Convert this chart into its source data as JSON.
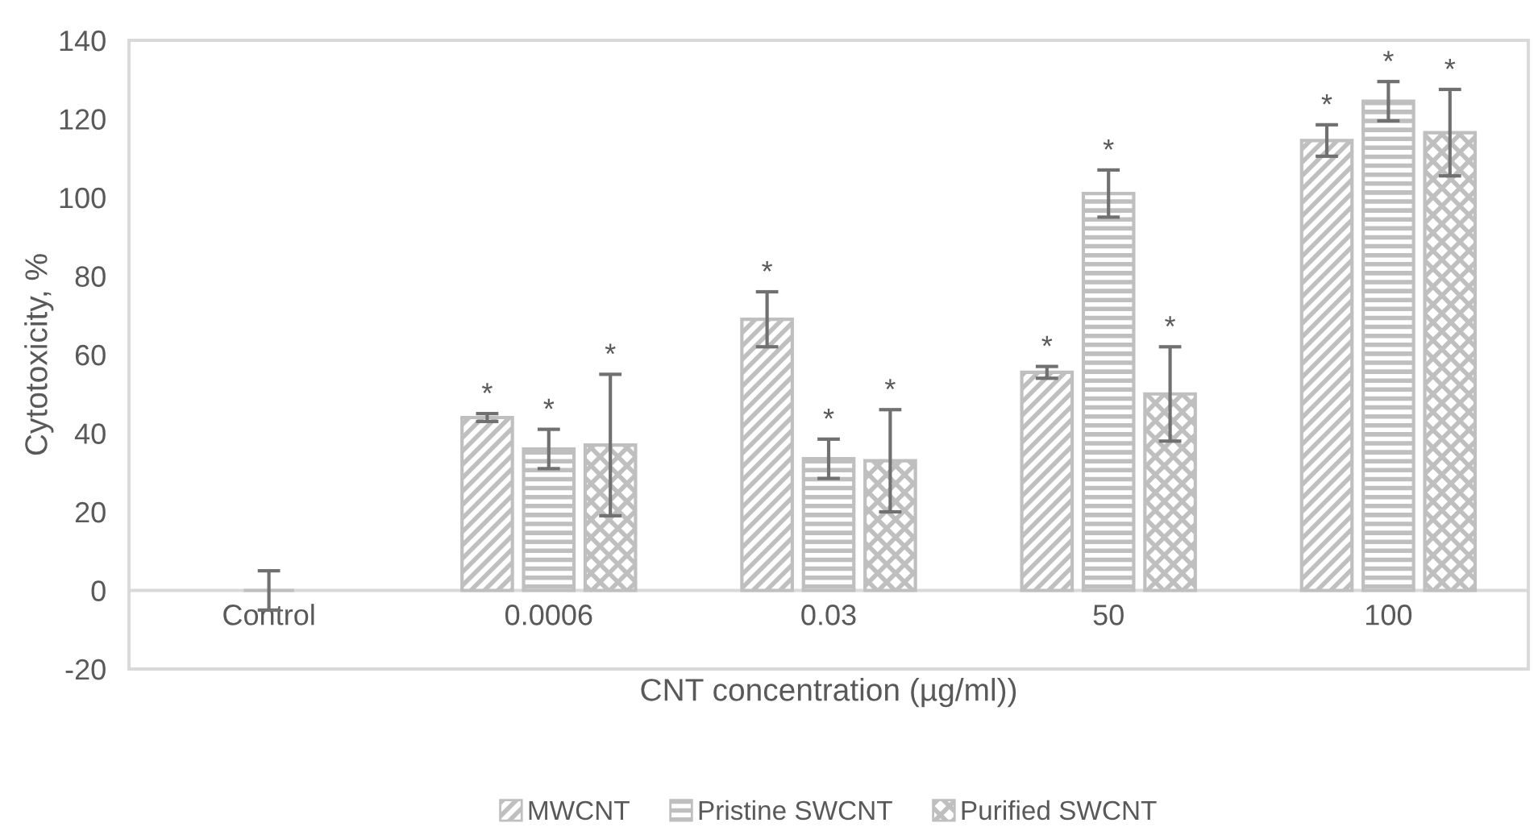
{
  "chart_data": {
    "type": "bar",
    "categories": [
      "Control",
      "0.0006",
      "0.03",
      "50",
      "100"
    ],
    "xlabel": "CNT concentration (µg/ml))",
    "ylabel": "Cytotoxicity, %",
    "ylim": [
      -20,
      140
    ],
    "yticks": [
      -20,
      0,
      20,
      40,
      60,
      80,
      100,
      120,
      140
    ],
    "series": [
      {
        "name": "MWCNT",
        "color": "#bfbfbf",
        "values": [
          null,
          44,
          69,
          55.5,
          114.5
        ],
        "errors": [
          null,
          1,
          7,
          1.5,
          4
        ],
        "value_labels": [
          null,
          "*",
          "*",
          "*",
          "*"
        ]
      },
      {
        "name": "Pristine SWCNT",
        "color": "#bfbfbf",
        "values": [
          0,
          36,
          33.5,
          101,
          124.5
        ],
        "errors": [
          5,
          5,
          5,
          6,
          5
        ],
        "value_labels": [
          null,
          "*",
          "*",
          "*",
          "*"
        ]
      },
      {
        "name": "Purified SWCNT",
        "color": "#bfbfbf",
        "values": [
          null,
          37,
          33,
          50,
          116.5
        ],
        "errors": [
          null,
          18,
          13,
          12,
          11
        ],
        "value_labels": [
          null,
          "*",
          "*",
          "*",
          "*"
        ]
      }
    ],
    "legend": "bottom",
    "grid": false
  }
}
